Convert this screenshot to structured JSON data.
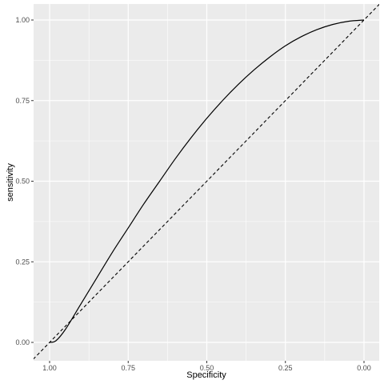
{
  "chart_data": {
    "type": "line",
    "title": "",
    "xlabel": "Specificity",
    "ylabel": "sensitivity",
    "x_reversed": true,
    "xlim": [
      1.0,
      0.0
    ],
    "ylim": [
      0.0,
      1.0
    ],
    "x_ticks": [
      "1.00",
      "0.75",
      "0.50",
      "0.25",
      "0.00"
    ],
    "y_ticks": [
      "0.00",
      "0.25",
      "0.50",
      "0.75",
      "1.00"
    ],
    "grid": true,
    "legend": "none",
    "panel_color": "#ebebeb",
    "grid_color": "#ffffff",
    "series": [
      {
        "style": "solid",
        "color": "#000000",
        "points": [
          {
            "specificity": 1.0,
            "sensitivity": 0.0
          },
          {
            "specificity": 0.98,
            "sensitivity": 0.005
          },
          {
            "specificity": 0.95,
            "sensitivity": 0.04
          },
          {
            "specificity": 0.9,
            "sensitivity": 0.12
          },
          {
            "specificity": 0.85,
            "sensitivity": 0.2
          },
          {
            "specificity": 0.8,
            "sensitivity": 0.28
          },
          {
            "specificity": 0.75,
            "sensitivity": 0.355
          },
          {
            "specificity": 0.7,
            "sensitivity": 0.43
          },
          {
            "specificity": 0.65,
            "sensitivity": 0.5
          },
          {
            "specificity": 0.6,
            "sensitivity": 0.57
          },
          {
            "specificity": 0.55,
            "sensitivity": 0.635
          },
          {
            "specificity": 0.5,
            "sensitivity": 0.695
          },
          {
            "specificity": 0.45,
            "sensitivity": 0.75
          },
          {
            "specificity": 0.4,
            "sensitivity": 0.8
          },
          {
            "specificity": 0.35,
            "sensitivity": 0.845
          },
          {
            "specificity": 0.3,
            "sensitivity": 0.885
          },
          {
            "specificity": 0.25,
            "sensitivity": 0.92
          },
          {
            "specificity": 0.2,
            "sensitivity": 0.948
          },
          {
            "specificity": 0.15,
            "sensitivity": 0.97
          },
          {
            "specificity": 0.1,
            "sensitivity": 0.986
          },
          {
            "specificity": 0.05,
            "sensitivity": 0.996
          },
          {
            "specificity": 0.0,
            "sensitivity": 1.0
          }
        ]
      },
      {
        "style": "dashed",
        "color": "#000000",
        "points": [
          {
            "specificity": 1.0,
            "sensitivity": 0.0
          },
          {
            "specificity": 0.0,
            "sensitivity": 1.0
          }
        ]
      }
    ]
  }
}
